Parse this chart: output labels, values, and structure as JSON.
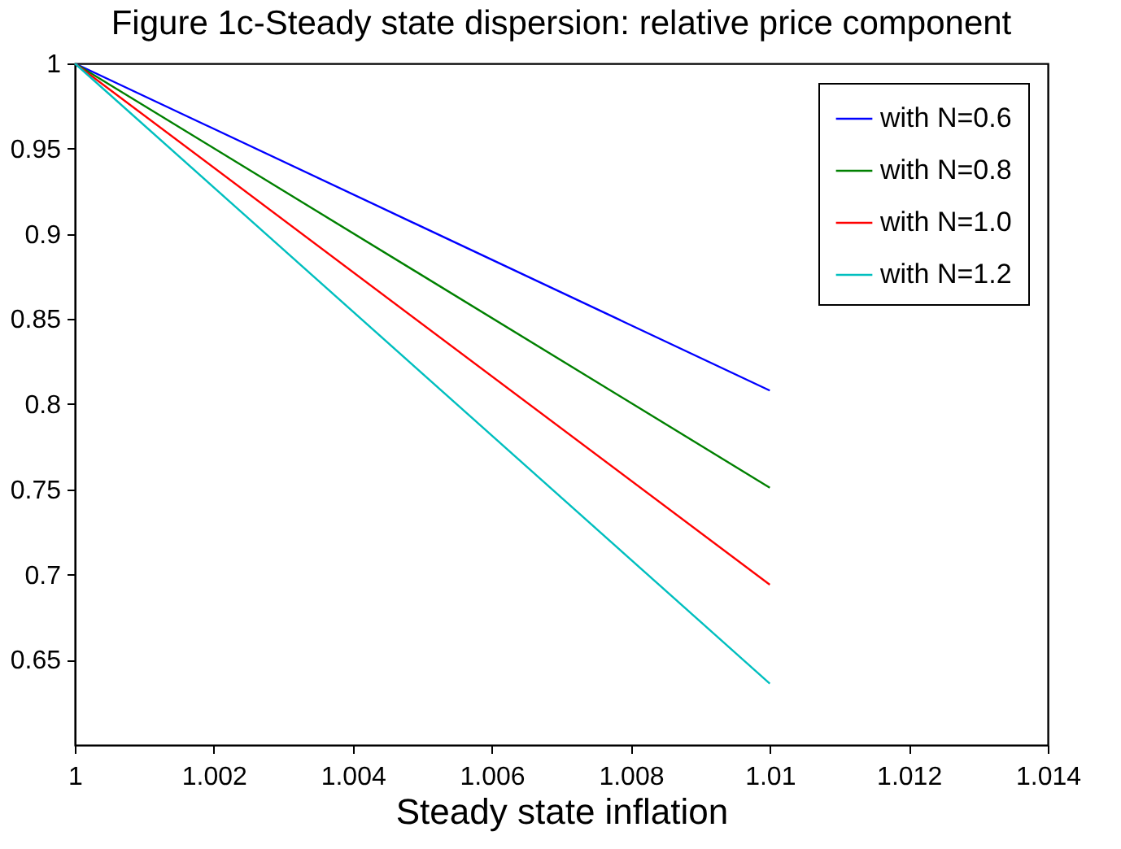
{
  "chart_data": {
    "type": "line",
    "title": "Figure 1c-Steady state dispersion: relative price component",
    "xlabel": "Steady state inflation",
    "x": [
      1,
      1.01
    ],
    "series": [
      {
        "name": "with N=0.6",
        "color": "#0000ff",
        "values": [
          1,
          0.808
        ]
      },
      {
        "name": "with N=0.8",
        "color": "#008000",
        "values": [
          1,
          0.751
        ]
      },
      {
        "name": "with N=1.0",
        "color": "#ff0000",
        "values": [
          1,
          0.694
        ]
      },
      {
        "name": "with N=1.2",
        "color": "#00bfbf",
        "values": [
          1,
          0.636
        ]
      }
    ],
    "xlim": [
      1,
      1.014
    ],
    "xticks": [
      1,
      1.002,
      1.004,
      1.006,
      1.008,
      1.01,
      1.012,
      1.014
    ],
    "ylim": [
      0.6,
      1
    ],
    "yticks": [
      0.65,
      0.7,
      0.75,
      0.8,
      0.85,
      0.9,
      0.95,
      1
    ],
    "grid": false,
    "legend": "top right",
    "marker": "none",
    "line_style": "solid"
  }
}
